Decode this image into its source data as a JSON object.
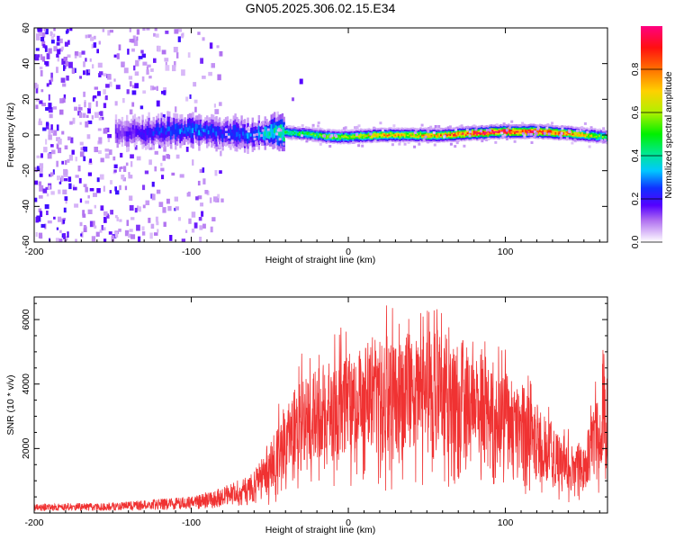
{
  "figure_title": "GN05.2025.306.02.15.E34",
  "chart_data": [
    {
      "type": "heatmap",
      "name": "spectrogram",
      "xlabel": "Height of straight line (km)",
      "ylabel": "Frequency (Hz)",
      "xlim": [
        -200,
        165
      ],
      "ylim": [
        -60,
        60
      ],
      "x_ticks": [
        -200,
        -100,
        0,
        100
      ],
      "y_ticks": [
        -60,
        -40,
        -20,
        0,
        20,
        40,
        60
      ],
      "colorbar": {
        "label": "Normalized spectral amplitude",
        "range": [
          0,
          1
        ],
        "ticks": [
          0.0,
          0.2,
          0.4,
          0.6,
          0.8
        ]
      },
      "ridge": {
        "description_points_x": [
          -145,
          -120,
          -100,
          -80,
          -60,
          -45,
          -30,
          -10,
          0,
          20,
          40,
          60,
          80,
          100,
          120,
          140,
          165
        ],
        "description_points_y": [
          1,
          2,
          3,
          1,
          0,
          2,
          1,
          -1,
          -1,
          0,
          0,
          0,
          1,
          2,
          2,
          1,
          -1
        ],
        "peak_amplitude": [
          0.15,
          0.25,
          0.3,
          0.25,
          0.3,
          0.45,
          0.5,
          0.6,
          0.6,
          0.75,
          0.7,
          0.8,
          0.95,
          1.0,
          0.95,
          0.85,
          0.5
        ]
      },
      "noise_region_x": [
        -200,
        -80
      ]
    },
    {
      "type": "line",
      "name": "snr",
      "xlabel": "Height of straight line (km)",
      "ylabel": "SNR (10 * v/v)",
      "xlim": [
        -200,
        165
      ],
      "ylim": [
        0,
        6700
      ],
      "x_ticks": [
        -200,
        -100,
        0,
        100
      ],
      "y_ticks": [
        2000,
        4000,
        6000
      ],
      "color": "#f03232",
      "envelope": {
        "x": [
          -200,
          -150,
          -100,
          -80,
          -60,
          -50,
          -40,
          -30,
          -20,
          -10,
          0,
          10,
          20,
          40,
          60,
          80,
          100,
          110,
          120,
          130,
          140,
          150,
          160,
          165
        ],
        "y": [
          250,
          280,
          450,
          700,
          1100,
          1800,
          2800,
          3400,
          3700,
          3900,
          4000,
          4200,
          4400,
          4500,
          4500,
          4200,
          3600,
          3200,
          2800,
          2200,
          1800,
          1700,
          3200,
          3800
        ]
      }
    }
  ]
}
